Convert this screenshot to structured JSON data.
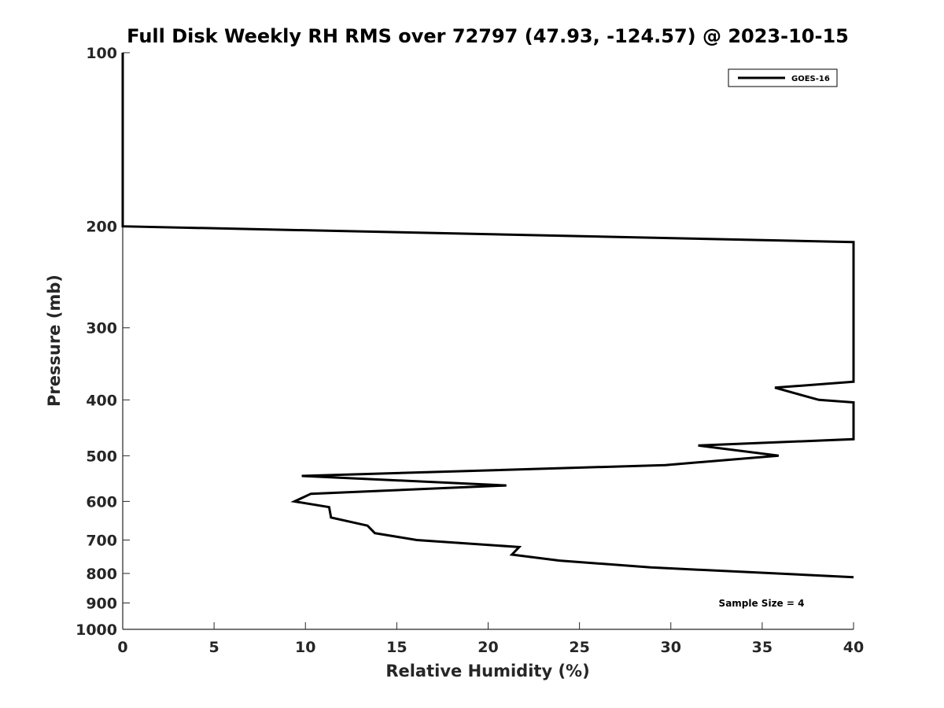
{
  "chart_data": {
    "type": "line",
    "title": "Full Disk Weekly RH RMS over 72797 (47.93, -124.57) @ 2023-10-15",
    "xlabel": "Relative Humidity (%)",
    "ylabel": "Pressure (mb)",
    "xlim": [
      0,
      40
    ],
    "ylim": [
      100,
      1000
    ],
    "y_scale": "log",
    "y_reversed": true,
    "x_ticks": [
      0,
      5,
      10,
      15,
      20,
      25,
      30,
      35,
      40
    ],
    "y_ticks": [
      100,
      200,
      300,
      400,
      500,
      600,
      700,
      800,
      900,
      1000
    ],
    "grid": false,
    "legend_position": "top-right",
    "series": [
      {
        "name": "GOES-16",
        "color": "#000000",
        "points": [
          [
            0.0,
            100
          ],
          [
            0.0,
            150
          ],
          [
            0.0,
            200
          ],
          [
            40,
            213
          ],
          [
            40,
            372
          ],
          [
            35.7,
            381
          ],
          [
            38.1,
            400
          ],
          [
            40,
            404
          ],
          [
            40,
            468
          ],
          [
            31.5,
            480
          ],
          [
            35.9,
            500
          ],
          [
            29.7,
            519
          ],
          [
            9.8,
            542
          ],
          [
            21.0,
            563
          ],
          [
            10.3,
            582
          ],
          [
            9.4,
            600
          ],
          [
            11.3,
            614
          ],
          [
            11.4,
            640
          ],
          [
            13.4,
            661
          ],
          [
            13.8,
            681
          ],
          [
            16.1,
            700
          ],
          [
            21.7,
            720
          ],
          [
            21.3,
            742
          ],
          [
            23.9,
            760
          ],
          [
            28.9,
            781
          ],
          [
            40,
            812
          ]
        ]
      }
    ],
    "annotation": "Sample Size = 4"
  }
}
